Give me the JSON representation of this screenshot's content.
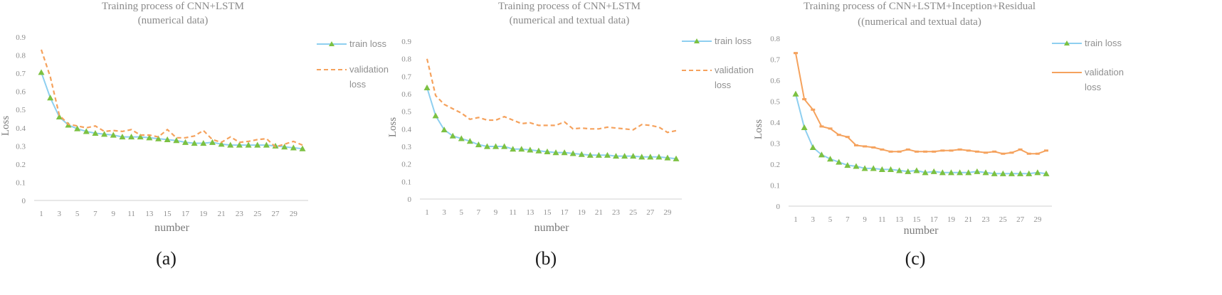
{
  "chart_data": [
    {
      "type": "line",
      "title": "Training process of CNN+LSTM",
      "subtitle": "(numerical data)",
      "xlabel": "number",
      "ylabel": "Loss",
      "caption": "(a)",
      "ylim": [
        0,
        0.9
      ],
      "y_ticks": [
        "0",
        "0.1",
        "0.2",
        "0.3",
        "0.4",
        "0.5",
        "0.6",
        "0.7",
        "0.8",
        "0.9"
      ],
      "x": [
        1,
        2,
        3,
        4,
        5,
        6,
        7,
        8,
        9,
        10,
        11,
        12,
        13,
        14,
        15,
        16,
        17,
        18,
        19,
        20,
        21,
        22,
        23,
        24,
        25,
        26,
        27,
        28,
        29,
        30
      ],
      "x_tick_labels": [
        "1",
        "3",
        "5",
        "7",
        "9",
        "11",
        "13",
        "15",
        "17",
        "19",
        "21",
        "23",
        "25",
        "27",
        "29"
      ],
      "grid": false,
      "legend_position": "right",
      "series": [
        {
          "name": "train loss",
          "color": "#8ecff0",
          "marker_color": "#7cc142",
          "marker": "triangle",
          "values": [
            0.705,
            0.565,
            0.46,
            0.415,
            0.395,
            0.38,
            0.37,
            0.365,
            0.36,
            0.35,
            0.35,
            0.35,
            0.345,
            0.34,
            0.335,
            0.33,
            0.32,
            0.315,
            0.315,
            0.32,
            0.31,
            0.305,
            0.305,
            0.305,
            0.305,
            0.305,
            0.3,
            0.295,
            0.29,
            0.285
          ]
        },
        {
          "name": "validation loss",
          "color": "#f5a25d",
          "dashed": true,
          "values": [
            0.83,
            0.68,
            0.47,
            0.42,
            0.41,
            0.4,
            0.41,
            0.38,
            0.385,
            0.38,
            0.39,
            0.36,
            0.36,
            0.35,
            0.39,
            0.345,
            0.345,
            0.355,
            0.385,
            0.335,
            0.32,
            0.35,
            0.32,
            0.325,
            0.335,
            0.34,
            0.295,
            0.31,
            0.325,
            0.305
          ]
        }
      ]
    },
    {
      "type": "line",
      "title": "Training process of CNN+LSTM",
      "subtitle": "(numerical and textual data)",
      "xlabel": "number",
      "ylabel": "Loss",
      "caption": "(b)",
      "ylim": [
        0,
        0.9
      ],
      "y_ticks": [
        "0",
        "0.1",
        "0.2",
        "0.3",
        "0.4",
        "0.5",
        "0.6",
        "0.7",
        "0.8",
        "0.9"
      ],
      "x": [
        1,
        2,
        3,
        4,
        5,
        6,
        7,
        8,
        9,
        10,
        11,
        12,
        13,
        14,
        15,
        16,
        17,
        18,
        19,
        20,
        21,
        22,
        23,
        24,
        25,
        26,
        27,
        28,
        29,
        30
      ],
      "x_tick_labels": [
        "1",
        "3",
        "5",
        "7",
        "9",
        "11",
        "13",
        "15",
        "17",
        "19",
        "21",
        "23",
        "25",
        "27",
        "29"
      ],
      "grid": false,
      "legend_position": "right",
      "series": [
        {
          "name": "train loss",
          "color": "#8ecff0",
          "marker_color": "#7cc142",
          "marker": "triangle",
          "values": [
            0.635,
            0.475,
            0.395,
            0.36,
            0.345,
            0.33,
            0.31,
            0.3,
            0.3,
            0.3,
            0.285,
            0.285,
            0.28,
            0.275,
            0.27,
            0.265,
            0.265,
            0.26,
            0.255,
            0.25,
            0.25,
            0.25,
            0.245,
            0.245,
            0.245,
            0.24,
            0.24,
            0.24,
            0.235,
            0.23
          ]
        },
        {
          "name": "validation loss",
          "color": "#f5a25d",
          "dashed": true,
          "values": [
            0.8,
            0.59,
            0.54,
            0.515,
            0.49,
            0.455,
            0.465,
            0.45,
            0.45,
            0.47,
            0.45,
            0.43,
            0.435,
            0.42,
            0.42,
            0.42,
            0.44,
            0.4,
            0.405,
            0.4,
            0.4,
            0.41,
            0.405,
            0.4,
            0.395,
            0.425,
            0.42,
            0.41,
            0.38,
            0.39
          ]
        }
      ]
    },
    {
      "type": "line",
      "title": "Training process of CNN+LSTM+Inception+Residual",
      "subtitle": "((numerical and textual data)",
      "xlabel": "number",
      "ylabel": "Loss",
      "caption": "(c)",
      "ylim": [
        0,
        0.8
      ],
      "y_ticks": [
        "0",
        "0.1",
        "0.2",
        "0.3",
        "0.4",
        "0.5",
        "0.6",
        "0.7",
        "0.8"
      ],
      "x": [
        1,
        2,
        3,
        4,
        5,
        6,
        7,
        8,
        9,
        10,
        11,
        12,
        13,
        14,
        15,
        16,
        17,
        18,
        19,
        20,
        21,
        22,
        23,
        24,
        25,
        26,
        27,
        28,
        29,
        30
      ],
      "x_tick_labels": [
        "1",
        "3",
        "5",
        "7",
        "9",
        "11",
        "13",
        "15",
        "17",
        "19",
        "21",
        "23",
        "25",
        "27",
        "29"
      ],
      "grid": false,
      "legend_position": "right",
      "series": [
        {
          "name": "train loss",
          "color": "#8ecff0",
          "marker_color": "#7cc142",
          "marker": "triangle",
          "values": [
            0.535,
            0.375,
            0.28,
            0.245,
            0.225,
            0.21,
            0.195,
            0.19,
            0.18,
            0.18,
            0.175,
            0.175,
            0.17,
            0.165,
            0.17,
            0.16,
            0.165,
            0.16,
            0.16,
            0.16,
            0.16,
            0.165,
            0.16,
            0.155,
            0.155,
            0.155,
            0.155,
            0.155,
            0.16,
            0.155
          ]
        },
        {
          "name": "validation loss",
          "color": "#f5a25d",
          "dashed": false,
          "marker": "dash",
          "values": [
            0.73,
            0.51,
            0.46,
            0.38,
            0.37,
            0.34,
            0.33,
            0.29,
            0.285,
            0.28,
            0.27,
            0.26,
            0.26,
            0.27,
            0.26,
            0.26,
            0.26,
            0.265,
            0.265,
            0.27,
            0.265,
            0.26,
            0.255,
            0.26,
            0.25,
            0.255,
            0.27,
            0.25,
            0.25,
            0.265
          ]
        }
      ]
    }
  ]
}
